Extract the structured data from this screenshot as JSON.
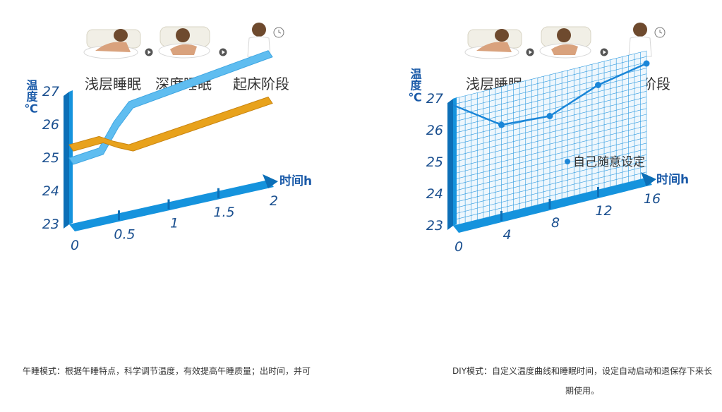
{
  "colors": {
    "axis": "#1593dd",
    "axis_dark": "#0c6fb7",
    "tick_text": "#1a4f8f",
    "band_blue": "#5fbdf0",
    "band_gold": "#e8a21c",
    "grid": "#2e9ae0",
    "line": "#1a86d8"
  },
  "stages": {
    "shallow": "浅层睡眠",
    "deep": "深度睡眠",
    "wake": "起床阶段"
  },
  "chart_data": [
    {
      "type": "area",
      "ylabel": "温度℃",
      "xlabel": "时间h",
      "xticks": [
        "0",
        "0.5",
        "1",
        "1.5",
        "2"
      ],
      "yticks": [
        "23",
        "24",
        "25",
        "26",
        "27"
      ],
      "ylim": [
        23,
        27
      ],
      "xlim": [
        0,
        2
      ],
      "series": [
        {
          "x": [
            0,
            0.3,
            0.45,
            0.6,
            2
          ],
          "values": [
            25,
            25.1,
            25.8,
            26.3,
            26.9
          ]
        },
        {
          "x": [
            0,
            0.3,
            0.45,
            0.6,
            2
          ],
          "values": [
            25.4,
            25.45,
            25.2,
            25,
            25.5
          ]
        }
      ]
    },
    {
      "type": "line",
      "ylabel": "温度℃",
      "xlabel": "时间h",
      "xticks": [
        "0",
        "4",
        "8",
        "12",
        "16"
      ],
      "yticks": [
        "23",
        "24",
        "25",
        "26",
        "27"
      ],
      "ylim": [
        23,
        27
      ],
      "xlim": [
        0,
        16
      ],
      "grid": true,
      "x": [
        0,
        4,
        8,
        12,
        16
      ],
      "values": [
        26.8,
        25.8,
        25.7,
        26.3,
        26.6
      ],
      "annotation": "自己随意设定"
    }
  ],
  "captions": {
    "left": "午睡模式：根据午睡特点，科学调节温度，有效提高午睡质量；出时间，并可",
    "right": "DIY模式：自定义温度曲线和睡眠时间，设定自动启动和退保存下来长期使用。"
  }
}
